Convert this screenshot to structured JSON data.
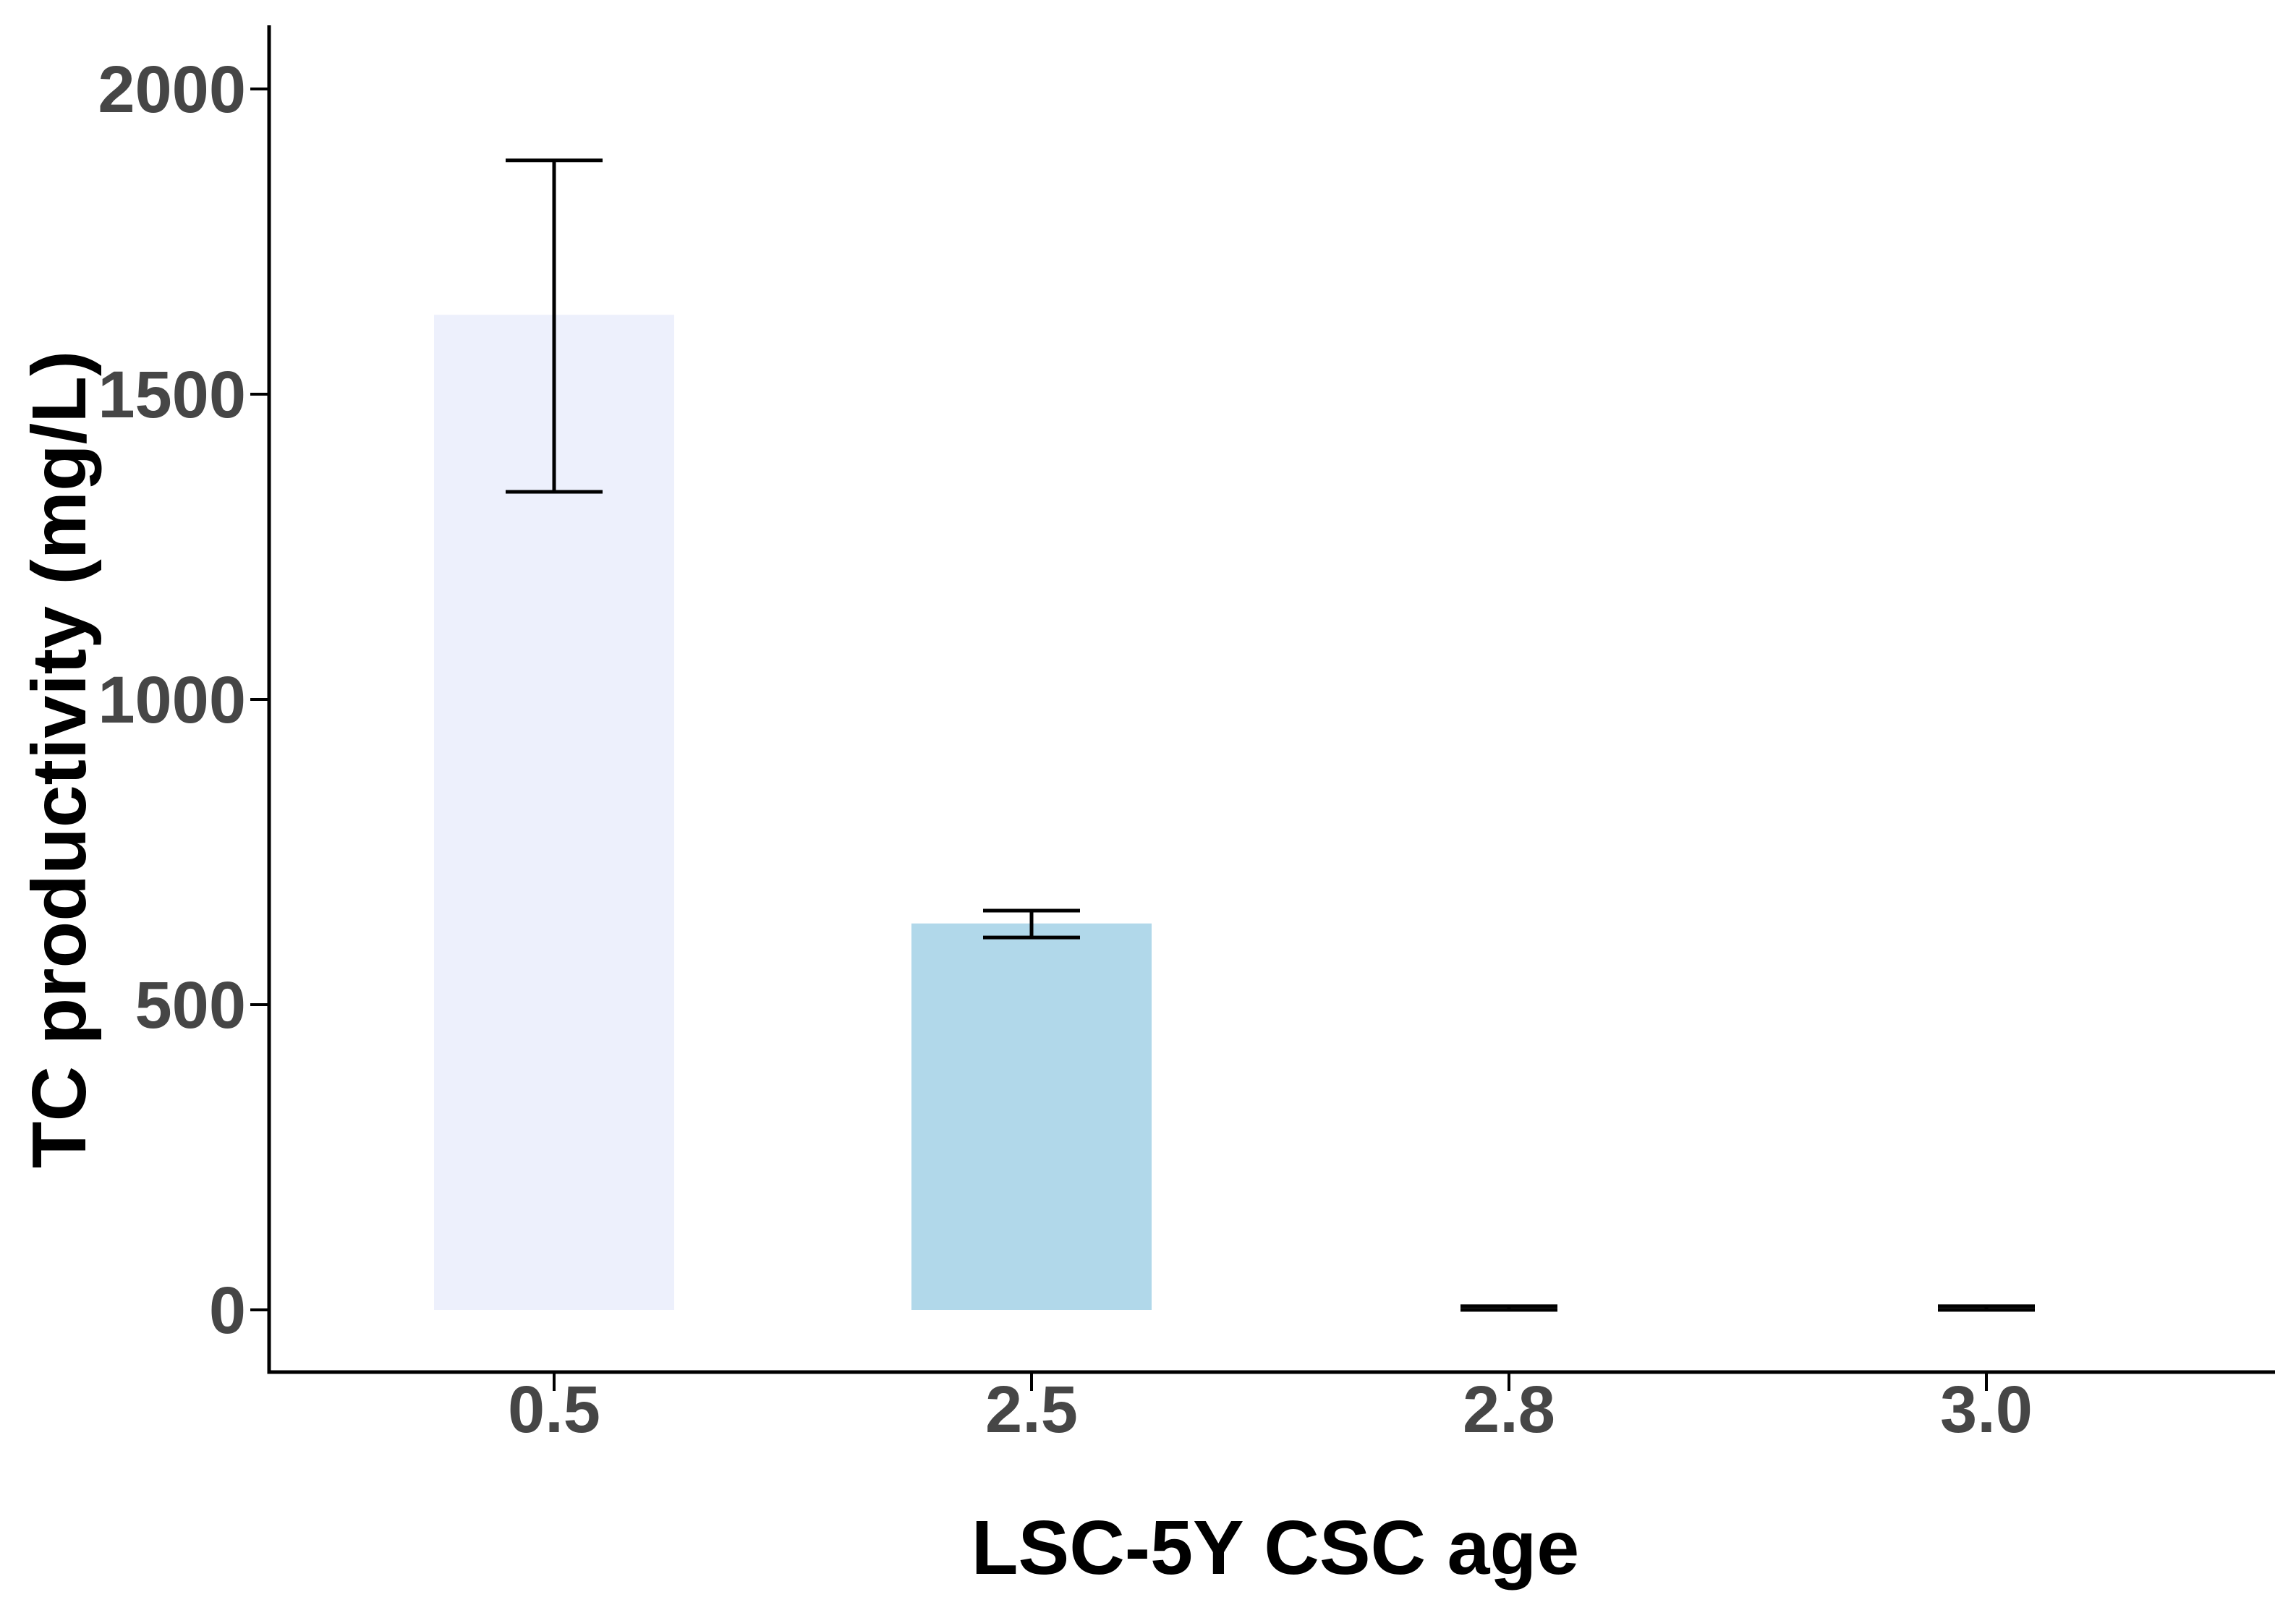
{
  "chart_data": {
    "type": "bar",
    "title": "",
    "xlabel": "LSC-5Y CSC age",
    "ylabel": "TC productivity (mg/L)",
    "categories": [
      "0.5",
      "2.5",
      "2.8",
      "3.0"
    ],
    "values": [
      1630,
      633,
      3,
      3
    ],
    "series": [
      {
        "name": "TC productivity",
        "values": [
          1630,
          633,
          3,
          3
        ],
        "error_low": [
          1340,
          610,
          0,
          0
        ],
        "error_high": [
          1883,
          654,
          6,
          6
        ]
      }
    ],
    "bar_fills": [
      "#edf0fc",
      "#b1d8ea",
      "none",
      "none"
    ],
    "yticks": [
      0,
      500,
      1000,
      1500,
      2000
    ],
    "ytick_labels": [
      "0",
      "500",
      "1000",
      "1500",
      "2000"
    ],
    "ylim": [
      0,
      2000
    ],
    "grid": false,
    "legend_position": "none",
    "error_bar_color": "#000000",
    "axis_color": "#000000",
    "tick_label_color": "#464646",
    "title_color": "#000000",
    "background_color": "#ffffff"
  }
}
